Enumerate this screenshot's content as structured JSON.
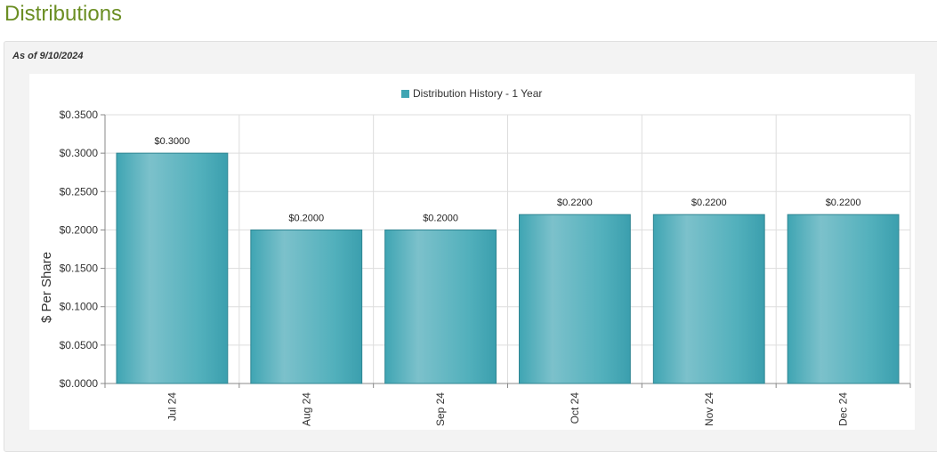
{
  "page_title": "Distributions",
  "as_of": "As of 9/10/2024",
  "colors": {
    "title": "#6b8e23",
    "bar": "#3fa5b3",
    "bar_light": "#7cc1cb",
    "bar_stroke": "#2f8592"
  },
  "chart_data": {
    "type": "bar",
    "title": "",
    "legend": [
      "Distribution History - 1 Year"
    ],
    "legend_position": "top-center",
    "categories": [
      "Jul 24",
      "Aug 24",
      "Sep 24",
      "Oct 24",
      "Nov 24",
      "Dec 24"
    ],
    "values": [
      0.3,
      0.2,
      0.2,
      0.22,
      0.22,
      0.22
    ],
    "data_labels": [
      "$0.3000",
      "$0.2000",
      "$0.2000",
      "$0.2200",
      "$0.2200",
      "$0.2200"
    ],
    "ylabel": "$ Per Share",
    "xlabel": "",
    "ylim": [
      0,
      0.35
    ],
    "yticks": [
      0,
      0.05,
      0.1,
      0.15,
      0.2,
      0.25,
      0.3,
      0.35
    ],
    "ytick_labels": [
      "$0.0000",
      "$0.0500",
      "$0.1000",
      "$0.1500",
      "$0.2000",
      "$0.2500",
      "$0.3000",
      "$0.3500"
    ],
    "grid": true
  }
}
